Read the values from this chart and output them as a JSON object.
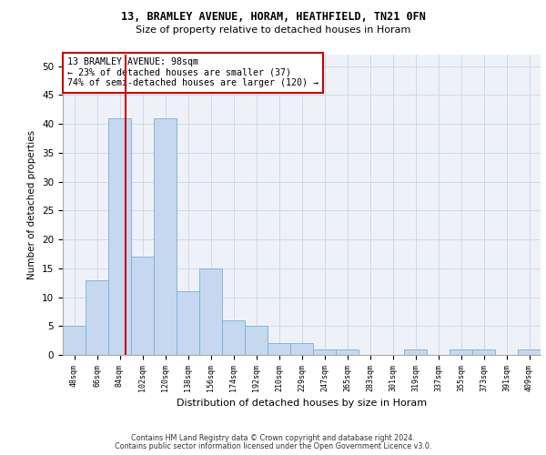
{
  "title_line1": "13, BRAMLEY AVENUE, HORAM, HEATHFIELD, TN21 0FN",
  "title_line2": "Size of property relative to detached houses in Horam",
  "xlabel": "Distribution of detached houses by size in Horam",
  "ylabel": "Number of detached properties",
  "categories": [
    "48sqm",
    "66sqm",
    "84sqm",
    "102sqm",
    "120sqm",
    "138sqm",
    "156sqm",
    "174sqm",
    "192sqm",
    "210sqm",
    "229sqm",
    "247sqm",
    "265sqm",
    "283sqm",
    "301sqm",
    "319sqm",
    "337sqm",
    "355sqm",
    "373sqm",
    "391sqm",
    "409sqm"
  ],
  "values": [
    5,
    13,
    41,
    17,
    41,
    11,
    15,
    6,
    5,
    2,
    2,
    1,
    1,
    0,
    0,
    1,
    0,
    1,
    1,
    0,
    1
  ],
  "bar_color": "#c5d8f0",
  "bar_edge_color": "#7aaed6",
  "vline_color": "#cc0000",
  "annotation_text": "13 BRAMLEY AVENUE: 98sqm\n← 23% of detached houses are smaller (37)\n74% of semi-detached houses are larger (120) →",
  "annotation_box_color": "#ffffff",
  "annotation_box_edge": "#cc0000",
  "ylim": [
    0,
    52
  ],
  "yticks": [
    0,
    5,
    10,
    15,
    20,
    25,
    30,
    35,
    40,
    45,
    50
  ],
  "grid_color": "#d0d8e8",
  "bg_color": "#eef2f8",
  "footer_line1": "Contains HM Land Registry data © Crown copyright and database right 2024.",
  "footer_line2": "Contains public sector information licensed under the Open Government Licence v3.0."
}
